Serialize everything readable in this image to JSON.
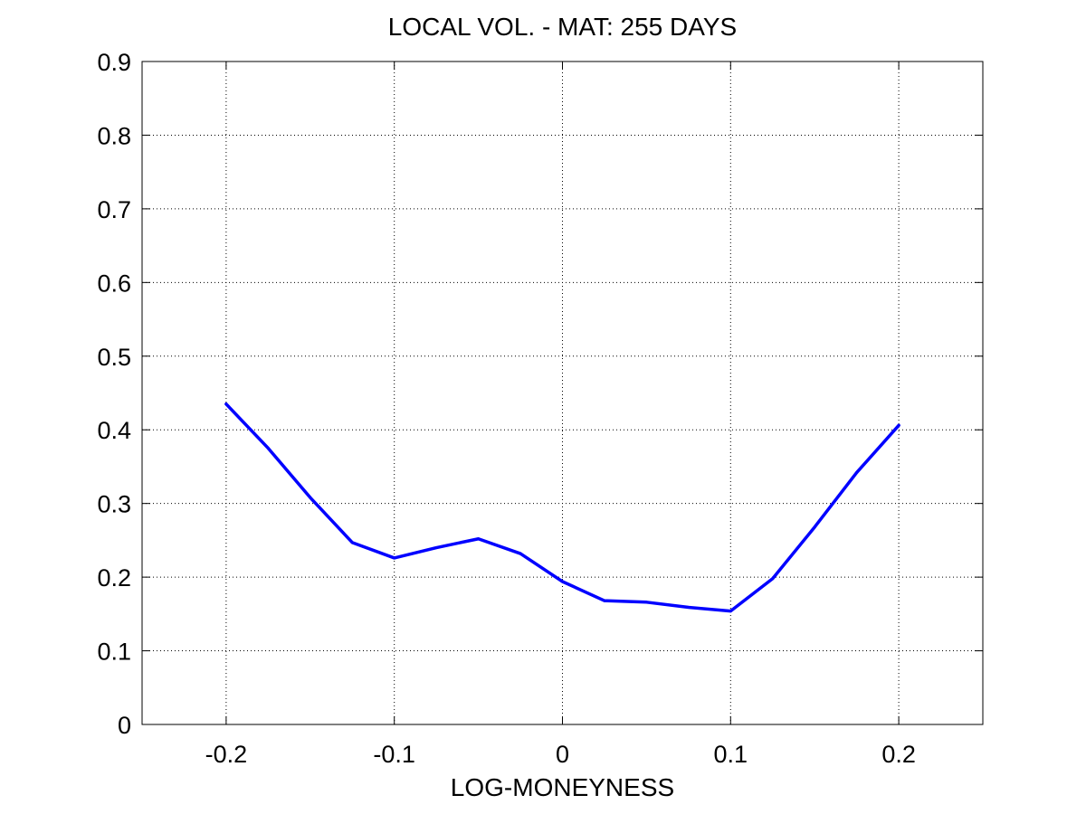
{
  "chart_data": {
    "type": "line",
    "title": "LOCAL VOL. - MAT: 255 DAYS",
    "xlabel": "LOG-MONEYNESS",
    "ylabel": "",
    "xlim": [
      -0.25,
      0.25
    ],
    "ylim": [
      0,
      0.9
    ],
    "xticks": [
      -0.2,
      -0.1,
      0,
      0.1,
      0.2
    ],
    "xtick_labels": [
      "-0.2",
      "-0.1",
      "0",
      "0.1",
      "0.2"
    ],
    "yticks": [
      0,
      0.1,
      0.2,
      0.3,
      0.4,
      0.5,
      0.6,
      0.7,
      0.8,
      0.9
    ],
    "ytick_labels": [
      "0",
      "0.1",
      "0.2",
      "0.3",
      "0.4",
      "0.5",
      "0.6",
      "0.7",
      "0.8",
      "0.9"
    ],
    "grid": true,
    "series": [
      {
        "color": "#0000ff",
        "x": [
          -0.2,
          -0.175,
          -0.15,
          -0.125,
          -0.1,
          -0.075,
          -0.05,
          -0.025,
          0,
          0.025,
          0.05,
          0.075,
          0.1,
          0.125,
          0.15,
          0.175,
          0.2
        ],
        "y": [
          0.435,
          0.375,
          0.308,
          0.247,
          0.226,
          0.24,
          0.252,
          0.232,
          0.194,
          0.168,
          0.166,
          0.159,
          0.154,
          0.198,
          0.268,
          0.342,
          0.406
        ]
      }
    ]
  }
}
